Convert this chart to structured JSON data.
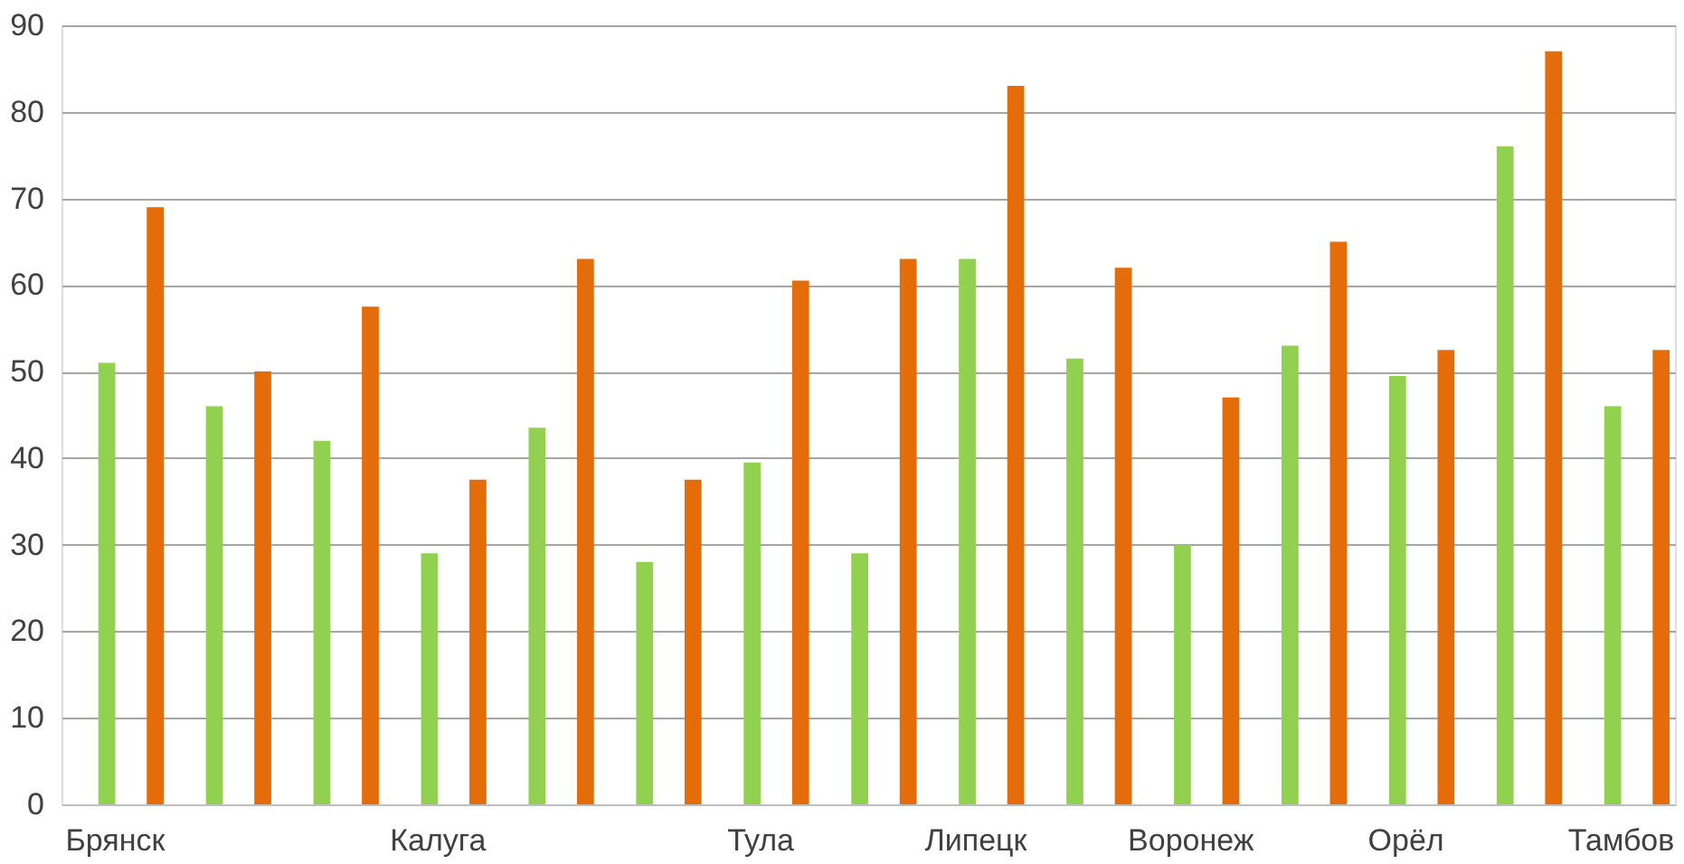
{
  "chart_data": {
    "type": "bar",
    "categories": [
      "Брянск",
      null,
      null,
      "Калуга",
      null,
      null,
      "Тула",
      null,
      "Липецк",
      null,
      "Воронеж",
      null,
      "Орёл",
      null,
      "Тамбов"
    ],
    "series": [
      {
        "color": "#92d050",
        "values": [
          51,
          46,
          42,
          29,
          43.5,
          28,
          39.5,
          29,
          63,
          51.5,
          30,
          53,
          49.5,
          76,
          46
        ]
      },
      {
        "color": "#e46c0a",
        "values": [
          69,
          50,
          57.5,
          37.5,
          63,
          37.5,
          60.5,
          63,
          83,
          62,
          47,
          65,
          52.5,
          87,
          52.5
        ]
      }
    ],
    "ylim": [
      0,
      90
    ],
    "yticks": [
      0,
      10,
      20,
      30,
      40,
      50,
      60,
      70,
      80,
      90
    ],
    "grid": "y",
    "legend": false
  }
}
